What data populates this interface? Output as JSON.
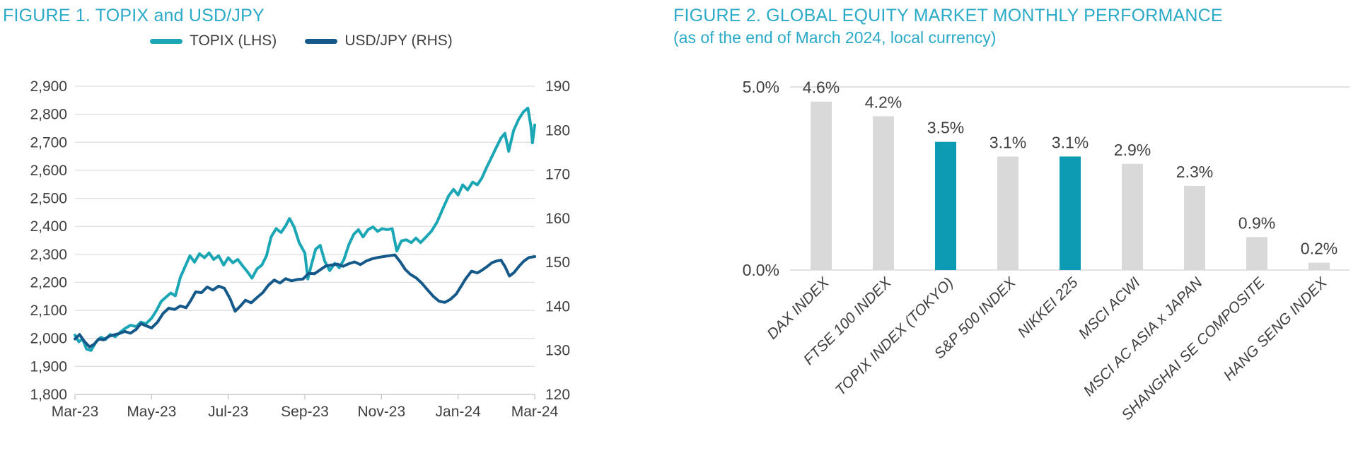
{
  "colors": {
    "title_teal": "#2BAAC8",
    "text_dark": "#3F3F3F",
    "gridline": "#DCDCDC",
    "axis_line": "#BFBFBF",
    "topix_teal": "#1BA6B6",
    "usdjpy_blue": "#15598A",
    "bar_teal": "#0C9BB3",
    "bar_gray": "#D9D9D9"
  },
  "figure1": {
    "title": "FIGURE 1. TOPIX and USD/JPY",
    "legend": [
      {
        "label": "TOPIX (LHS)"
      },
      {
        "label": "USD/JPY (RHS)"
      }
    ]
  },
  "figure2": {
    "title": "FIGURE 2. GLOBAL EQUITY MARKET MONTHLY PERFORMANCE",
    "subtitle": "(as of the end of March 2024, local currency)"
  },
  "chart_data": [
    {
      "id": "topix-usdjpy",
      "type": "line",
      "title": "FIGURE 1. TOPIX and USD/JPY",
      "grid": "horizontal",
      "legend_position": "top-center",
      "x_axis": {
        "tick_labels": [
          "Mar-23",
          "May-23",
          "Jul-23",
          "Sep-23",
          "Nov-23",
          "Jan-24",
          "Mar-24"
        ],
        "tick_positions_months": [
          0,
          2,
          4,
          6,
          8,
          10,
          12
        ],
        "range_months": [
          0,
          12
        ]
      },
      "left_axis": {
        "min": 1800,
        "max": 2900,
        "step": 100,
        "tick_labels": [
          "2,900",
          "2,800",
          "2,700",
          "2,600",
          "2,500",
          "2,400",
          "2,300",
          "2,200",
          "2,100",
          "2,000",
          "1,900",
          "1,800"
        ]
      },
      "right_axis": {
        "min": 120,
        "max": 190,
        "step": 10,
        "tick_labels": [
          "190",
          "180",
          "170",
          "160",
          "150",
          "140",
          "130",
          "120"
        ]
      },
      "series": [
        {
          "name": "TOPIX (LHS)",
          "axis": "left",
          "color": "#1BA6B6",
          "points": [
            [
              0,
              2012
            ],
            [
              0.1,
              1988
            ],
            [
              0.2,
              1998
            ],
            [
              0.3,
              1962
            ],
            [
              0.42,
              1957
            ],
            [
              0.55,
              1988
            ],
            [
              0.68,
              2004
            ],
            [
              0.8,
              1996
            ],
            [
              0.92,
              2014
            ],
            [
              1.05,
              2006
            ],
            [
              1.18,
              2022
            ],
            [
              1.3,
              2035
            ],
            [
              1.45,
              2047
            ],
            [
              1.6,
              2042
            ],
            [
              1.72,
              2058
            ],
            [
              1.85,
              2052
            ],
            [
              2,
              2072
            ],
            [
              2.12,
              2098
            ],
            [
              2.25,
              2132
            ],
            [
              2.38,
              2148
            ],
            [
              2.5,
              2162
            ],
            [
              2.62,
              2152
            ],
            [
              2.75,
              2218
            ],
            [
              2.88,
              2258
            ],
            [
              3,
              2295
            ],
            [
              3.12,
              2272
            ],
            [
              3.25,
              2302
            ],
            [
              3.38,
              2288
            ],
            [
              3.5,
              2305
            ],
            [
              3.62,
              2282
            ],
            [
              3.75,
              2295
            ],
            [
              3.88,
              2262
            ],
            [
              4,
              2288
            ],
            [
              4.12,
              2270
            ],
            [
              4.25,
              2282
            ],
            [
              4.38,
              2258
            ],
            [
              4.5,
              2238
            ],
            [
              4.62,
              2215
            ],
            [
              4.75,
              2248
            ],
            [
              4.88,
              2262
            ],
            [
              5,
              2295
            ],
            [
              5.12,
              2362
            ],
            [
              5.25,
              2392
            ],
            [
              5.38,
              2378
            ],
            [
              5.5,
              2402
            ],
            [
              5.6,
              2428
            ],
            [
              5.72,
              2398
            ],
            [
              5.85,
              2342
            ],
            [
              6,
              2305
            ],
            [
              6.08,
              2212
            ],
            [
              6.17,
              2262
            ],
            [
              6.28,
              2318
            ],
            [
              6.4,
              2332
            ],
            [
              6.52,
              2275
            ],
            [
              6.65,
              2242
            ],
            [
              6.78,
              2268
            ],
            [
              6.9,
              2252
            ],
            [
              7.02,
              2282
            ],
            [
              7.15,
              2335
            ],
            [
              7.28,
              2372
            ],
            [
              7.4,
              2388
            ],
            [
              7.52,
              2362
            ],
            [
              7.65,
              2388
            ],
            [
              7.78,
              2398
            ],
            [
              7.9,
              2382
            ],
            [
              8.02,
              2392
            ],
            [
              8.15,
              2388
            ],
            [
              8.28,
              2392
            ],
            [
              8.4,
              2312
            ],
            [
              8.52,
              2348
            ],
            [
              8.65,
              2352
            ],
            [
              8.78,
              2342
            ],
            [
              8.9,
              2358
            ],
            [
              9.02,
              2342
            ],
            [
              9.15,
              2360
            ],
            [
              9.3,
              2382
            ],
            [
              9.45,
              2415
            ],
            [
              9.6,
              2462
            ],
            [
              9.75,
              2508
            ],
            [
              9.88,
              2532
            ],
            [
              10,
              2512
            ],
            [
              10.12,
              2548
            ],
            [
              10.25,
              2530
            ],
            [
              10.38,
              2558
            ],
            [
              10.5,
              2548
            ],
            [
              10.62,
              2572
            ],
            [
              10.75,
              2612
            ],
            [
              10.88,
              2648
            ],
            [
              11,
              2682
            ],
            [
              11.12,
              2715
            ],
            [
              11.22,
              2732
            ],
            [
              11.32,
              2668
            ],
            [
              11.45,
              2742
            ],
            [
              11.58,
              2782
            ],
            [
              11.7,
              2808
            ],
            [
              11.82,
              2822
            ],
            [
              11.9,
              2758
            ],
            [
              11.94,
              2698
            ],
            [
              12,
              2762
            ]
          ]
        },
        {
          "name": "USD/JPY (RHS)",
          "axis": "right",
          "color": "#15598A",
          "points": [
            [
              0,
              132.6
            ],
            [
              0.12,
              133.6
            ],
            [
              0.25,
              132
            ],
            [
              0.38,
              130.8
            ],
            [
              0.5,
              131.4
            ],
            [
              0.62,
              132.6
            ],
            [
              0.75,
              132.4
            ],
            [
              0.88,
              133.2
            ],
            [
              1,
              133.5
            ],
            [
              1.15,
              133.8
            ],
            [
              1.3,
              134.3
            ],
            [
              1.45,
              133.9
            ],
            [
              1.6,
              134.8
            ],
            [
              1.72,
              136.1
            ],
            [
              1.85,
              135.6
            ],
            [
              2,
              135.1
            ],
            [
              2.15,
              136.4
            ],
            [
              2.3,
              138.4
            ],
            [
              2.45,
              139.6
            ],
            [
              2.6,
              139.3
            ],
            [
              2.75,
              140.1
            ],
            [
              2.9,
              139.7
            ],
            [
              3.02,
              141.3
            ],
            [
              3.15,
              143.3
            ],
            [
              3.3,
              143.1
            ],
            [
              3.45,
              144.4
            ],
            [
              3.6,
              143.7
            ],
            [
              3.75,
              144.6
            ],
            [
              3.9,
              144.1
            ],
            [
              4.05,
              141.7
            ],
            [
              4.18,
              138.9
            ],
            [
              4.32,
              140.1
            ],
            [
              4.45,
              141.4
            ],
            [
              4.6,
              140.8
            ],
            [
              4.75,
              142
            ],
            [
              4.9,
              143.1
            ],
            [
              5.05,
              144.8
            ],
            [
              5.2,
              146
            ],
            [
              5.35,
              145.3
            ],
            [
              5.5,
              146.3
            ],
            [
              5.65,
              145.8
            ],
            [
              5.8,
              146.1
            ],
            [
              5.95,
              146.2
            ],
            [
              6.1,
              147.5
            ],
            [
              6.25,
              147.4
            ],
            [
              6.4,
              148.3
            ],
            [
              6.55,
              149.2
            ],
            [
              6.7,
              149.4
            ],
            [
              6.85,
              149.6
            ],
            [
              7,
              149.1
            ],
            [
              7.15,
              149.7
            ],
            [
              7.3,
              150.1
            ],
            [
              7.45,
              149.5
            ],
            [
              7.6,
              150.3
            ],
            [
              7.75,
              150.8
            ],
            [
              7.9,
              151.1
            ],
            [
              8.05,
              151.3
            ],
            [
              8.2,
              151.5
            ],
            [
              8.35,
              151.7
            ],
            [
              8.5,
              150
            ],
            [
              8.62,
              148.4
            ],
            [
              8.75,
              147.3
            ],
            [
              8.9,
              146.5
            ],
            [
              9.05,
              145.3
            ],
            [
              9.2,
              143.8
            ],
            [
              9.35,
              142.3
            ],
            [
              9.5,
              141.2
            ],
            [
              9.65,
              140.9
            ],
            [
              9.8,
              141.6
            ],
            [
              9.95,
              142.8
            ],
            [
              10.08,
              144.6
            ],
            [
              10.2,
              146.3
            ],
            [
              10.35,
              148
            ],
            [
              10.5,
              147.6
            ],
            [
              10.62,
              148.2
            ],
            [
              10.75,
              149
            ],
            [
              10.88,
              149.9
            ],
            [
              11,
              150.3
            ],
            [
              11.12,
              150.5
            ],
            [
              11.22,
              149.1
            ],
            [
              11.34,
              146.9
            ],
            [
              11.46,
              147.7
            ],
            [
              11.6,
              149.2
            ],
            [
              11.72,
              150.3
            ],
            [
              11.85,
              151.1
            ],
            [
              12,
              151.3
            ]
          ]
        }
      ]
    },
    {
      "id": "global-equity-monthly",
      "type": "bar",
      "title": "FIGURE 2. GLOBAL EQUITY MARKET MONTHLY PERFORMANCE",
      "subtitle": "(as of the end of March 2024, local currency)",
      "categories": [
        "DAX INDEX",
        "FTSE 100 INDEX",
        "TOPIX INDEX (TOKYO)",
        "S&P 500 INDEX",
        "NIKKEI 225",
        "MSCI ACWI",
        "MSCI AC ASIA x JAPAN",
        "SHANGHAI SE COMPOSITE",
        "HANG SENG INDEX"
      ],
      "values": [
        4.6,
        4.2,
        3.5,
        3.1,
        3.1,
        2.9,
        2.3,
        0.9,
        0.2
      ],
      "value_labels": [
        "4.6%",
        "4.2%",
        "3.5%",
        "3.1%",
        "3.1%",
        "2.9%",
        "2.3%",
        "0.9%",
        "0.2%"
      ],
      "bar_colors": [
        "#D9D9D9",
        "#D9D9D9",
        "#0C9BB3",
        "#D9D9D9",
        "#0C9BB3",
        "#D9D9D9",
        "#D9D9D9",
        "#D9D9D9",
        "#D9D9D9"
      ],
      "ylim": [
        0,
        5
      ],
      "y_tick_labels": [
        "0.0%",
        "5.0%"
      ],
      "grid": "top-line-only",
      "xlabel": "",
      "ylabel": ""
    }
  ]
}
